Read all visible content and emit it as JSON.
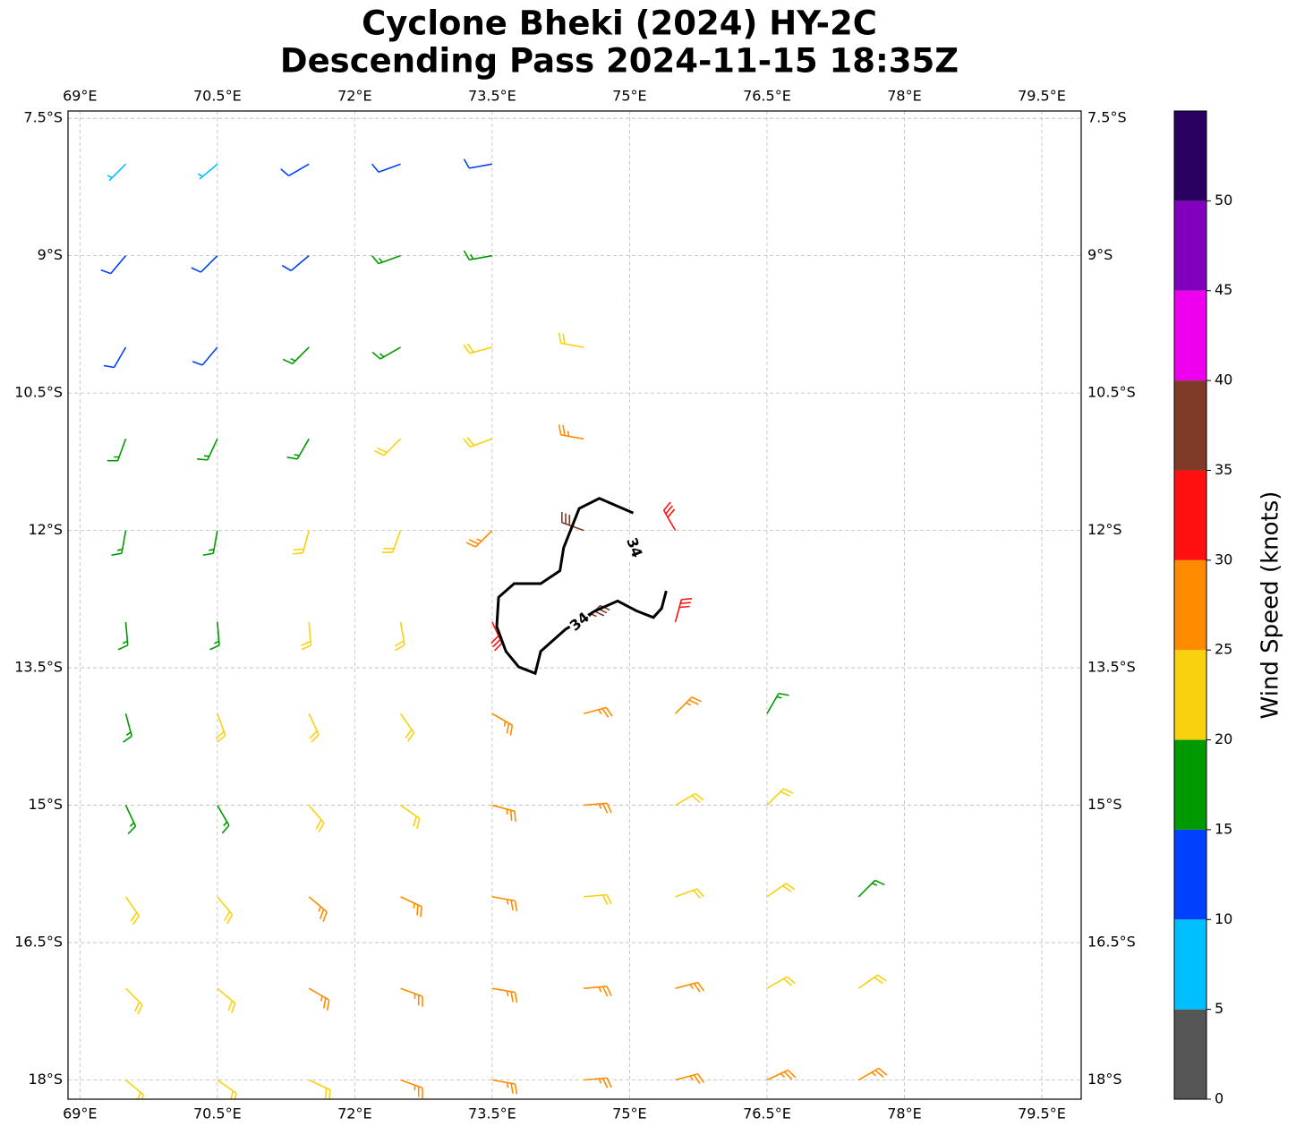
{
  "chart_data": {
    "type": "wind-barbs",
    "title": "Cyclone Bheki (2024) HY-2C",
    "subtitle": "Descending Pass 2024-11-15 18:35Z",
    "xlim": [
      68.87,
      79.93
    ],
    "ylim": [
      -7.42,
      -18.21
    ],
    "xticks": [
      {
        "value": 69,
        "label": "69°E"
      },
      {
        "value": 70.5,
        "label": "70.5°E"
      },
      {
        "value": 72,
        "label": "72°E"
      },
      {
        "value": 73.5,
        "label": "73.5°E"
      },
      {
        "value": 75,
        "label": "75°E"
      },
      {
        "value": 76.5,
        "label": "76.5°E"
      },
      {
        "value": 78,
        "label": "78°E"
      },
      {
        "value": 79.5,
        "label": "79.5°E"
      }
    ],
    "yticks": [
      {
        "value": -7.5,
        "label": "7.5°S"
      },
      {
        "value": -9,
        "label": "9°S"
      },
      {
        "value": -10.5,
        "label": "10.5°S"
      },
      {
        "value": -12,
        "label": "12°S"
      },
      {
        "value": -13.5,
        "label": "13.5°S"
      },
      {
        "value": -15,
        "label": "15°S"
      },
      {
        "value": -16.5,
        "label": "16.5°S"
      },
      {
        "value": -18,
        "label": "18°S"
      }
    ],
    "grid": true,
    "barbs": {
      "lon": [
        69.5,
        70.5,
        71.5,
        72.5,
        73.5,
        69.5,
        70.5,
        71.5,
        72.5,
        73.5,
        69.5,
        70.5,
        71.5,
        72.5,
        73.5,
        74.5,
        69.5,
        70.5,
        71.5,
        72.5,
        73.5,
        74.5,
        69.5,
        70.5,
        71.5,
        72.5,
        73.5,
        74.5,
        75.5,
        69.5,
        70.5,
        71.5,
        72.5,
        73.5,
        74.5,
        75.5,
        69.5,
        70.5,
        71.5,
        72.5,
        73.5,
        74.5,
        75.5,
        76.5,
        69.5,
        70.5,
        71.5,
        72.5,
        73.5,
        74.5,
        75.5,
        76.5,
        69.5,
        70.5,
        71.5,
        72.5,
        73.5,
        74.5,
        75.5,
        76.5,
        77.5,
        69.5,
        70.5,
        71.5,
        72.5,
        73.5,
        74.5,
        75.5,
        76.5,
        77.5,
        69.5,
        70.5,
        71.5,
        72.5,
        73.5,
        74.5,
        75.5,
        76.5,
        77.5
      ],
      "lat": [
        -8,
        -8,
        -8,
        -8,
        -8,
        -9,
        -9,
        -9,
        -9,
        -9,
        -10,
        -10,
        -10,
        -10,
        -10,
        -10,
        -11,
        -11,
        -11,
        -11,
        -11,
        -11,
        -12,
        -12,
        -12,
        -12,
        -12,
        -12,
        -12,
        -13,
        -13,
        -13,
        -13,
        -13,
        -13,
        -13,
        -14,
        -14,
        -14,
        -14,
        -14,
        -14,
        -14,
        -14,
        -15,
        -15,
        -15,
        -15,
        -15,
        -15,
        -15,
        -15,
        -16,
        -16,
        -16,
        -16,
        -16,
        -16,
        -16,
        -16,
        -16,
        -17,
        -17,
        -17,
        -17,
        -17,
        -17,
        -17,
        -17,
        -17,
        -18,
        -18,
        -18,
        -18,
        -18,
        -18,
        -18,
        -18,
        -18
      ],
      "speed": [
        7,
        8,
        10,
        12,
        13,
        12,
        11,
        13,
        15,
        17,
        12,
        14,
        16,
        18,
        21,
        22,
        16,
        17,
        19,
        21,
        24,
        28,
        18,
        18,
        21,
        23,
        28,
        37,
        33,
        17,
        19,
        22,
        24,
        33,
        36,
        32,
        17,
        21,
        23,
        24,
        27,
        28,
        26,
        19,
        17,
        19,
        22,
        24,
        26,
        27,
        24,
        21,
        21,
        22,
        26,
        25,
        27,
        24,
        23,
        21,
        19,
        22,
        24,
        27,
        27,
        25,
        26,
        27,
        24,
        23,
        22,
        23,
        24,
        26,
        27,
        27,
        28,
        27,
        27
      ],
      "direction": [
        225,
        230,
        240,
        250,
        260,
        220,
        225,
        230,
        250,
        260,
        210,
        220,
        225,
        240,
        255,
        280,
        200,
        205,
        210,
        225,
        250,
        280,
        190,
        190,
        195,
        200,
        225,
        290,
        330,
        175,
        175,
        175,
        170,
        155,
        45,
        15,
        165,
        160,
        155,
        145,
        120,
        75,
        45,
        30,
        155,
        150,
        140,
        125,
        105,
        85,
        60,
        45,
        145,
        140,
        130,
        115,
        100,
        85,
        70,
        55,
        45,
        135,
        130,
        120,
        110,
        100,
        85,
        75,
        60,
        55,
        130,
        125,
        115,
        110,
        100,
        85,
        75,
        65,
        60
      ]
    },
    "contour": {
      "level": 34,
      "lon": [
        75.04,
        74.67,
        74.45,
        74.28,
        74.24,
        74.03,
        73.74,
        73.57,
        73.55,
        73.65,
        73.79,
        73.97,
        74.03,
        74.3,
        74.62,
        74.87,
        75.08,
        75.26,
        75.35,
        75.4
      ],
      "lat": [
        -11.81,
        -11.65,
        -11.76,
        -12.19,
        -12.44,
        -12.58,
        -12.58,
        -12.73,
        -13.05,
        -13.32,
        -13.49,
        -13.56,
        -13.32,
        -13.08,
        -12.88,
        -12.77,
        -12.88,
        -12.95,
        -12.85,
        -12.66
      ]
    },
    "colorbar": {
      "label": "Wind Speed (knots)",
      "bounds": [
        0,
        5,
        10,
        15,
        20,
        25,
        30,
        35,
        40,
        45,
        50,
        55
      ],
      "colors": [
        "#555555",
        "#00bfff",
        "#0040ff",
        "#009a00",
        "#f9d10f",
        "#ff8c00",
        "#ff1010",
        "#7f3a28",
        "#ee00ee",
        "#8000bb",
        "#2a0060"
      ],
      "ylim": [
        0,
        55
      ],
      "ticks": [
        0,
        5,
        10,
        15,
        20,
        25,
        30,
        35,
        40,
        45,
        50
      ]
    }
  }
}
